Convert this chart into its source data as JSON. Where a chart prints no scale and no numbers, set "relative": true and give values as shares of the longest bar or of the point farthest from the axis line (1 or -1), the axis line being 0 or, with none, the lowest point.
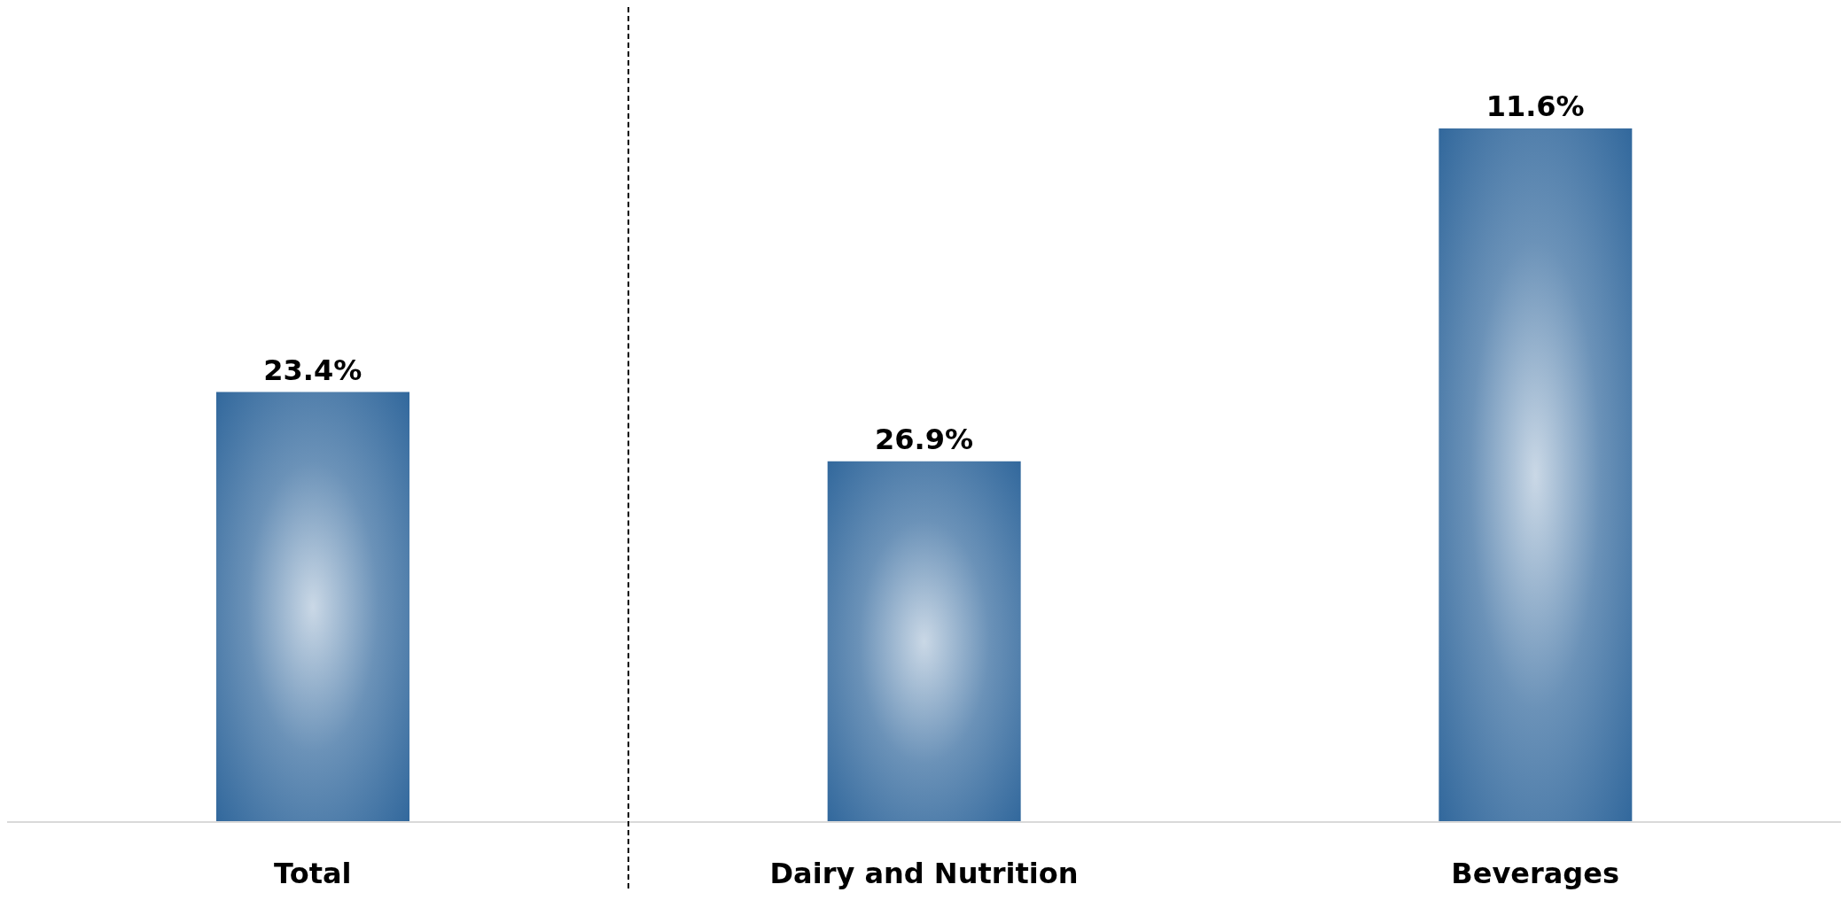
{
  "chart_data": {
    "type": "bar",
    "relative": true,
    "categories": [
      "Total",
      "Dairy and Nutrition",
      "Beverages"
    ],
    "values": [
      0.62,
      0.52,
      1
    ],
    "annotations": [
      {
        "text": "23.4%",
        "x": "Total",
        "y": 0.62
      },
      {
        "text": "26.9%",
        "x": "Dairy and Nutrition",
        "y": 0.52
      },
      {
        "text": "11.6%",
        "x": "Beverages",
        "y": 1
      }
    ],
    "color": "#2b6399"
  }
}
